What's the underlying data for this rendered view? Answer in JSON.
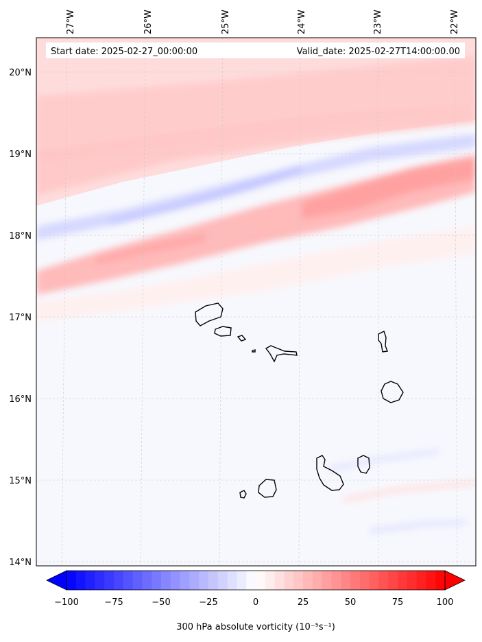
{
  "header": {
    "start_label": "Start date: 2025-02-27_00:00:00",
    "valid_label": "Valid_date: 2025-02-27T14:00:00.00"
  },
  "axes": {
    "lon_labels": [
      "27°W",
      "26°W",
      "25°W",
      "24°W",
      "23°W",
      "22°W"
    ],
    "lat_labels": [
      "20°N",
      "19°N",
      "18°N",
      "17°N",
      "16°N",
      "15°N",
      "14°N"
    ]
  },
  "colorbar": {
    "label": "300 hPa absolute vorticity (10⁻⁵s⁻¹)",
    "ticks": [
      "−100",
      "−75",
      "−50",
      "−25",
      "0",
      "25",
      "50",
      "75",
      "100"
    ],
    "min": -100,
    "max": 100,
    "neg_color": "#0000ff",
    "mid_color": "#ffffff",
    "pos_color": "#ff0000"
  },
  "map": {
    "region": "Cape Verde islands",
    "background_color": "#f7f8fd",
    "coastline_color": "#000000"
  }
}
